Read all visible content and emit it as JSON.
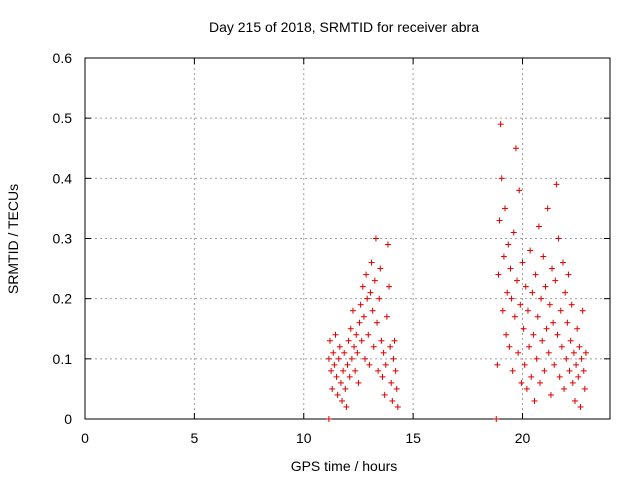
{
  "chart_data": {
    "type": "scatter",
    "title": "Day 215 of 2018, SRMTID for receiver abra",
    "xlabel": "GPS time / hours",
    "ylabel": "SRMTID / TECUs",
    "xlim": [
      0,
      24
    ],
    "ylim": [
      0,
      0.6
    ],
    "xticks": [
      0,
      5,
      10,
      15,
      20
    ],
    "xtick_labels": [
      "0",
      "5",
      "10",
      "15",
      "20"
    ],
    "yticks": [
      0,
      0.1,
      0.2,
      0.3,
      0.4,
      0.5,
      0.6
    ],
    "ytick_labels": [
      "0",
      "0.1",
      "0.2",
      "0.3",
      "0.4",
      "0.5",
      "0.6"
    ],
    "grid": true,
    "marker": "+",
    "color": "#dd0000",
    "series": [
      {
        "name": "SRMTID",
        "points": [
          [
            11.15,
            0.0
          ],
          [
            11.15,
            0.1
          ],
          [
            11.2,
            0.13
          ],
          [
            11.25,
            0.08
          ],
          [
            11.3,
            0.05
          ],
          [
            11.35,
            0.11
          ],
          [
            11.4,
            0.09
          ],
          [
            11.45,
            0.14
          ],
          [
            11.5,
            0.07
          ],
          [
            11.55,
            0.04
          ],
          [
            11.6,
            0.1
          ],
          [
            11.65,
            0.12
          ],
          [
            11.7,
            0.06
          ],
          [
            11.75,
            0.03
          ],
          [
            11.8,
            0.08
          ],
          [
            11.85,
            0.11
          ],
          [
            11.9,
            0.05
          ],
          [
            11.95,
            0.02
          ],
          [
            12.0,
            0.09
          ],
          [
            12.05,
            0.13
          ],
          [
            12.1,
            0.07
          ],
          [
            12.15,
            0.15
          ],
          [
            12.2,
            0.1
          ],
          [
            12.25,
            0.18
          ],
          [
            12.3,
            0.12
          ],
          [
            12.35,
            0.08
          ],
          [
            12.4,
            0.14
          ],
          [
            12.45,
            0.11
          ],
          [
            12.5,
            0.06
          ],
          [
            12.55,
            0.16
          ],
          [
            12.6,
            0.19
          ],
          [
            12.65,
            0.13
          ],
          [
            12.7,
            0.22
          ],
          [
            12.75,
            0.17
          ],
          [
            12.8,
            0.1
          ],
          [
            12.85,
            0.24
          ],
          [
            12.9,
            0.2
          ],
          [
            12.95,
            0.14
          ],
          [
            13.0,
            0.09
          ],
          [
            13.05,
            0.21
          ],
          [
            13.1,
            0.26
          ],
          [
            13.15,
            0.18
          ],
          [
            13.2,
            0.12
          ],
          [
            13.25,
            0.23
          ],
          [
            13.3,
            0.3
          ],
          [
            13.35,
            0.16
          ],
          [
            13.4,
            0.08
          ],
          [
            13.45,
            0.2
          ],
          [
            13.5,
            0.25
          ],
          [
            13.55,
            0.13
          ],
          [
            13.6,
            0.07
          ],
          [
            13.65,
            0.11
          ],
          [
            13.7,
            0.04
          ],
          [
            13.75,
            0.09
          ],
          [
            13.8,
            0.17
          ],
          [
            13.85,
            0.29
          ],
          [
            13.9,
            0.22
          ],
          [
            13.95,
            0.12
          ],
          [
            14.0,
            0.06
          ],
          [
            14.05,
            0.03
          ],
          [
            14.1,
            0.1
          ],
          [
            14.15,
            0.13
          ],
          [
            14.2,
            0.08
          ],
          [
            14.25,
            0.05
          ],
          [
            14.3,
            0.02
          ],
          [
            18.8,
            0.0
          ],
          [
            18.85,
            0.09
          ],
          [
            18.9,
            0.24
          ],
          [
            18.95,
            0.33
          ],
          [
            19.0,
            0.49
          ],
          [
            19.05,
            0.4
          ],
          [
            19.1,
            0.18
          ],
          [
            19.15,
            0.27
          ],
          [
            19.2,
            0.35
          ],
          [
            19.25,
            0.14
          ],
          [
            19.3,
            0.21
          ],
          [
            19.35,
            0.29
          ],
          [
            19.4,
            0.12
          ],
          [
            19.45,
            0.25
          ],
          [
            19.5,
            0.2
          ],
          [
            19.55,
            0.08
          ],
          [
            19.6,
            0.31
          ],
          [
            19.65,
            0.17
          ],
          [
            19.7,
            0.45
          ],
          [
            19.75,
            0.23
          ],
          [
            19.8,
            0.11
          ],
          [
            19.85,
            0.38
          ],
          [
            19.9,
            0.19
          ],
          [
            19.95,
            0.06
          ],
          [
            20.0,
            0.26
          ],
          [
            20.05,
            0.15
          ],
          [
            20.1,
            0.09
          ],
          [
            20.15,
            0.22
          ],
          [
            20.2,
            0.05
          ],
          [
            20.25,
            0.18
          ],
          [
            20.3,
            0.12
          ],
          [
            20.35,
            0.28
          ],
          [
            20.4,
            0.07
          ],
          [
            20.45,
            0.21
          ],
          [
            20.5,
            0.14
          ],
          [
            20.55,
            0.03
          ],
          [
            20.6,
            0.24
          ],
          [
            20.65,
            0.1
          ],
          [
            20.7,
            0.17
          ],
          [
            20.75,
            0.32
          ],
          [
            20.8,
            0.06
          ],
          [
            20.85,
            0.2
          ],
          [
            20.9,
            0.13
          ],
          [
            20.95,
            0.27
          ],
          [
            21.0,
            0.08
          ],
          [
            21.05,
            0.22
          ],
          [
            21.1,
            0.15
          ],
          [
            21.15,
            0.35
          ],
          [
            21.2,
            0.11
          ],
          [
            21.25,
            0.19
          ],
          [
            21.3,
            0.04
          ],
          [
            21.35,
            0.25
          ],
          [
            21.4,
            0.16
          ],
          [
            21.45,
            0.09
          ],
          [
            21.5,
            0.23
          ],
          [
            21.55,
            0.39
          ],
          [
            21.6,
            0.14
          ],
          [
            21.65,
            0.3
          ],
          [
            21.7,
            0.07
          ],
          [
            21.75,
            0.18
          ],
          [
            21.8,
            0.12
          ],
          [
            21.85,
            0.26
          ],
          [
            21.9,
            0.05
          ],
          [
            21.95,
            0.21
          ],
          [
            22.0,
            0.1
          ],
          [
            22.05,
            0.16
          ],
          [
            22.1,
            0.24
          ],
          [
            22.15,
            0.08
          ],
          [
            22.2,
            0.13
          ],
          [
            22.25,
            0.19
          ],
          [
            22.3,
            0.06
          ],
          [
            22.35,
            0.11
          ],
          [
            22.4,
            0.03
          ],
          [
            22.45,
            0.09
          ],
          [
            22.5,
            0.15
          ],
          [
            22.55,
            0.07
          ],
          [
            22.6,
            0.12
          ],
          [
            22.65,
            0.02
          ],
          [
            22.7,
            0.1
          ],
          [
            22.75,
            0.18
          ],
          [
            22.8,
            0.08
          ],
          [
            22.85,
            0.05
          ],
          [
            22.9,
            0.11
          ]
        ]
      }
    ]
  }
}
